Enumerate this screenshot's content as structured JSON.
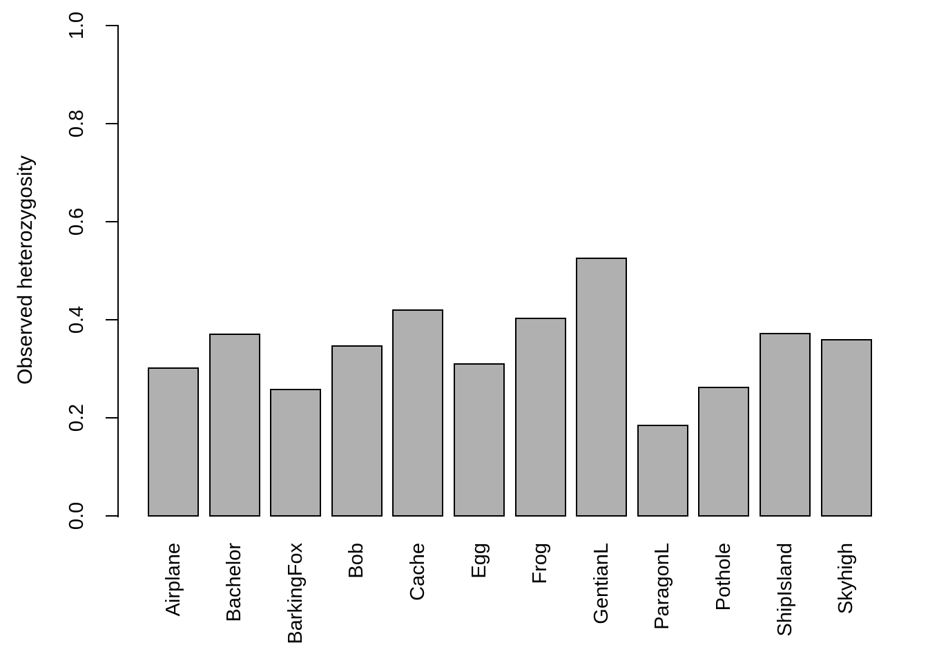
{
  "chart_data": {
    "type": "bar",
    "title": "",
    "xlabel": "",
    "ylabel": "Observed heterozygosity",
    "categories": [
      "Airplane",
      "Bachelor",
      "BarkingFox",
      "Bob",
      "Cache",
      "Egg",
      "Frog",
      "GentianL",
      "ParagonL",
      "Pothole",
      "ShipIsland",
      "Skyhigh"
    ],
    "values": [
      0.302,
      0.371,
      0.259,
      0.348,
      0.421,
      0.311,
      0.404,
      0.527,
      0.186,
      0.263,
      0.373,
      0.36
    ],
    "ylim": [
      0.0,
      1.0
    ],
    "yticks": [
      0.0,
      0.2,
      0.4,
      0.6,
      0.8,
      1.0
    ],
    "ytick_labels": [
      "0.0",
      "0.2",
      "0.4",
      "0.6",
      "0.8",
      "1.0"
    ],
    "grid": false,
    "legend": null,
    "orientation": "vertical",
    "x_tick_label_rotation_deg": 90,
    "y_tick_label_rotation_deg": 90,
    "colors": {
      "bar_fill": "#b0b0b0",
      "bar_border": "#000000",
      "axis": "#000000",
      "background": "#ffffff",
      "text": "#000000"
    }
  }
}
